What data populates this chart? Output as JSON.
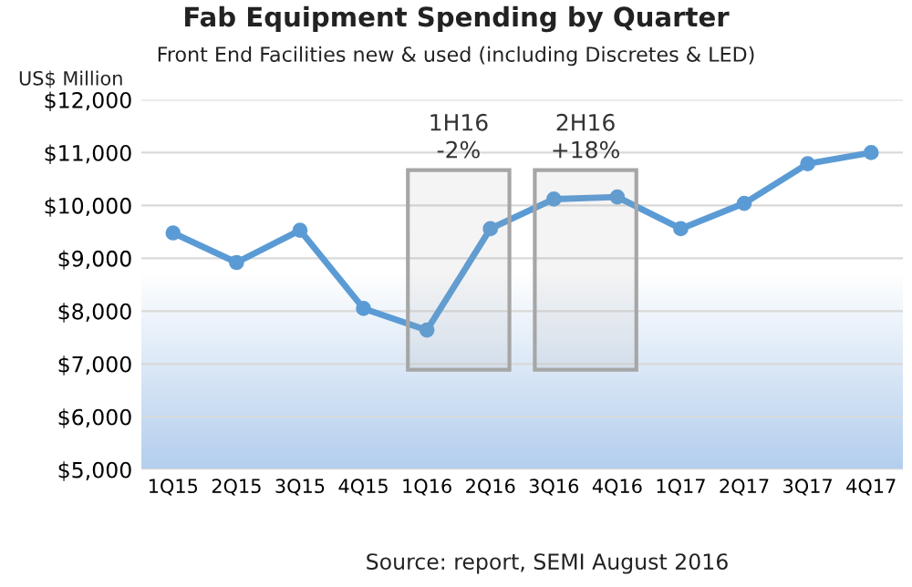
{
  "chart_data": {
    "type": "line",
    "title": "Fab Equipment Spending by Quarter",
    "subtitle": "Front End Facilities new & used (including Discretes & LED)",
    "ylabel": "US$ Million",
    "categories": [
      "1Q15",
      "2Q15",
      "3Q15",
      "4Q15",
      "1Q16",
      "2Q16",
      "3Q16",
      "4Q16",
      "1Q17",
      "2Q17",
      "3Q17",
      "4Q17"
    ],
    "series": [
      {
        "color": "#5b9bd5",
        "values": [
          9480,
          8920,
          9530,
          8050,
          7640,
          9560,
          10120,
          10160,
          9560,
          10040,
          10790,
          11000
        ]
      }
    ],
    "marker": "circle",
    "line_style": "solid",
    "grid": "y",
    "ylim": [
      5000,
      12000
    ],
    "yticks": [
      {
        "value": 5000,
        "label": "$5,000"
      },
      {
        "value": 6000,
        "label": "$6,000"
      },
      {
        "value": 7000,
        "label": "$7,000"
      },
      {
        "value": 8000,
        "label": "$8,000"
      },
      {
        "value": 9000,
        "label": "$9,000"
      },
      {
        "value": 10000,
        "label": "$10,000"
      },
      {
        "value": 11000,
        "label": "$11,000"
      },
      {
        "value": 12000,
        "label": "$12,000"
      }
    ],
    "bands": [
      {
        "axis": "x",
        "from": "1Q16",
        "to": "2Q16",
        "label": "1H16\n-2%",
        "color": "#a6a6a6"
      },
      {
        "axis": "x",
        "from": "3Q16",
        "to": "4Q16",
        "label": "2H16\n+18%",
        "color": "#a6a6a6"
      }
    ],
    "annotations": [
      "Source: report, SEMI August 2016"
    ]
  }
}
